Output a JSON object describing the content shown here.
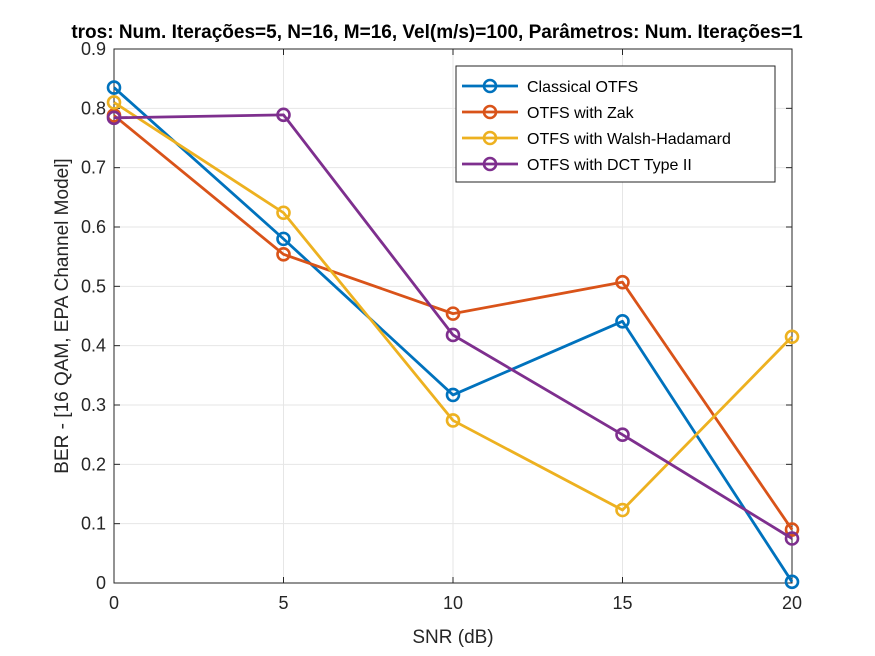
{
  "chart_data": {
    "type": "line",
    "title": "tros: Num. Iterações=5, N=16, M=16, Vel(m/s)=100, Parâmetros: Num. Iterações=1",
    "xlabel": "SNR (dB)",
    "ylabel": "BER - [16 QAM, EPA Channel Model]",
    "x": [
      0,
      5,
      10,
      15,
      20
    ],
    "xlim": [
      0,
      20
    ],
    "ylim": [
      0,
      0.9
    ],
    "xticks": [
      "0",
      "5",
      "10",
      "15",
      "20"
    ],
    "yticks": [
      "0",
      "0.1",
      "0.2",
      "0.3",
      "0.4",
      "0.5",
      "0.6",
      "0.7",
      "0.8",
      "0.9"
    ],
    "grid": true,
    "legend_position": "top-right",
    "series": [
      {
        "name": "Classical OTFS",
        "color": "#0072BD",
        "values": [
          0.835,
          0.58,
          0.317,
          0.441,
          0.002
        ]
      },
      {
        "name": "OTFS with Zak",
        "color": "#D95319",
        "values": [
          0.788,
          0.554,
          0.454,
          0.507,
          0.09
        ]
      },
      {
        "name": "OTFS with Walsh-Hadamard",
        "color": "#EDB120",
        "values": [
          0.81,
          0.624,
          0.274,
          0.123,
          0.415
        ]
      },
      {
        "name": "OTFS with DCT Type II",
        "color": "#7E2F8E",
        "values": [
          0.784,
          0.789,
          0.418,
          0.25,
          0.075
        ]
      }
    ]
  }
}
